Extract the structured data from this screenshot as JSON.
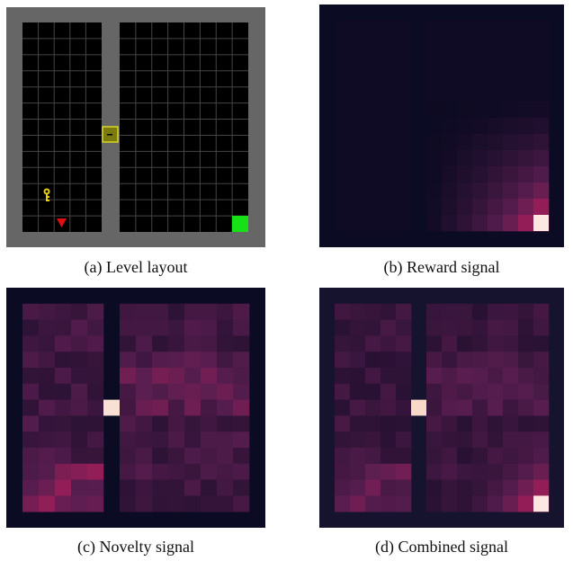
{
  "panels": [
    {
      "caption": "(a) Level layout"
    },
    {
      "caption": "(b) Reward signal"
    },
    {
      "caption": "(c) Novelty signal"
    },
    {
      "caption": "(d) Combined signal"
    }
  ]
}
